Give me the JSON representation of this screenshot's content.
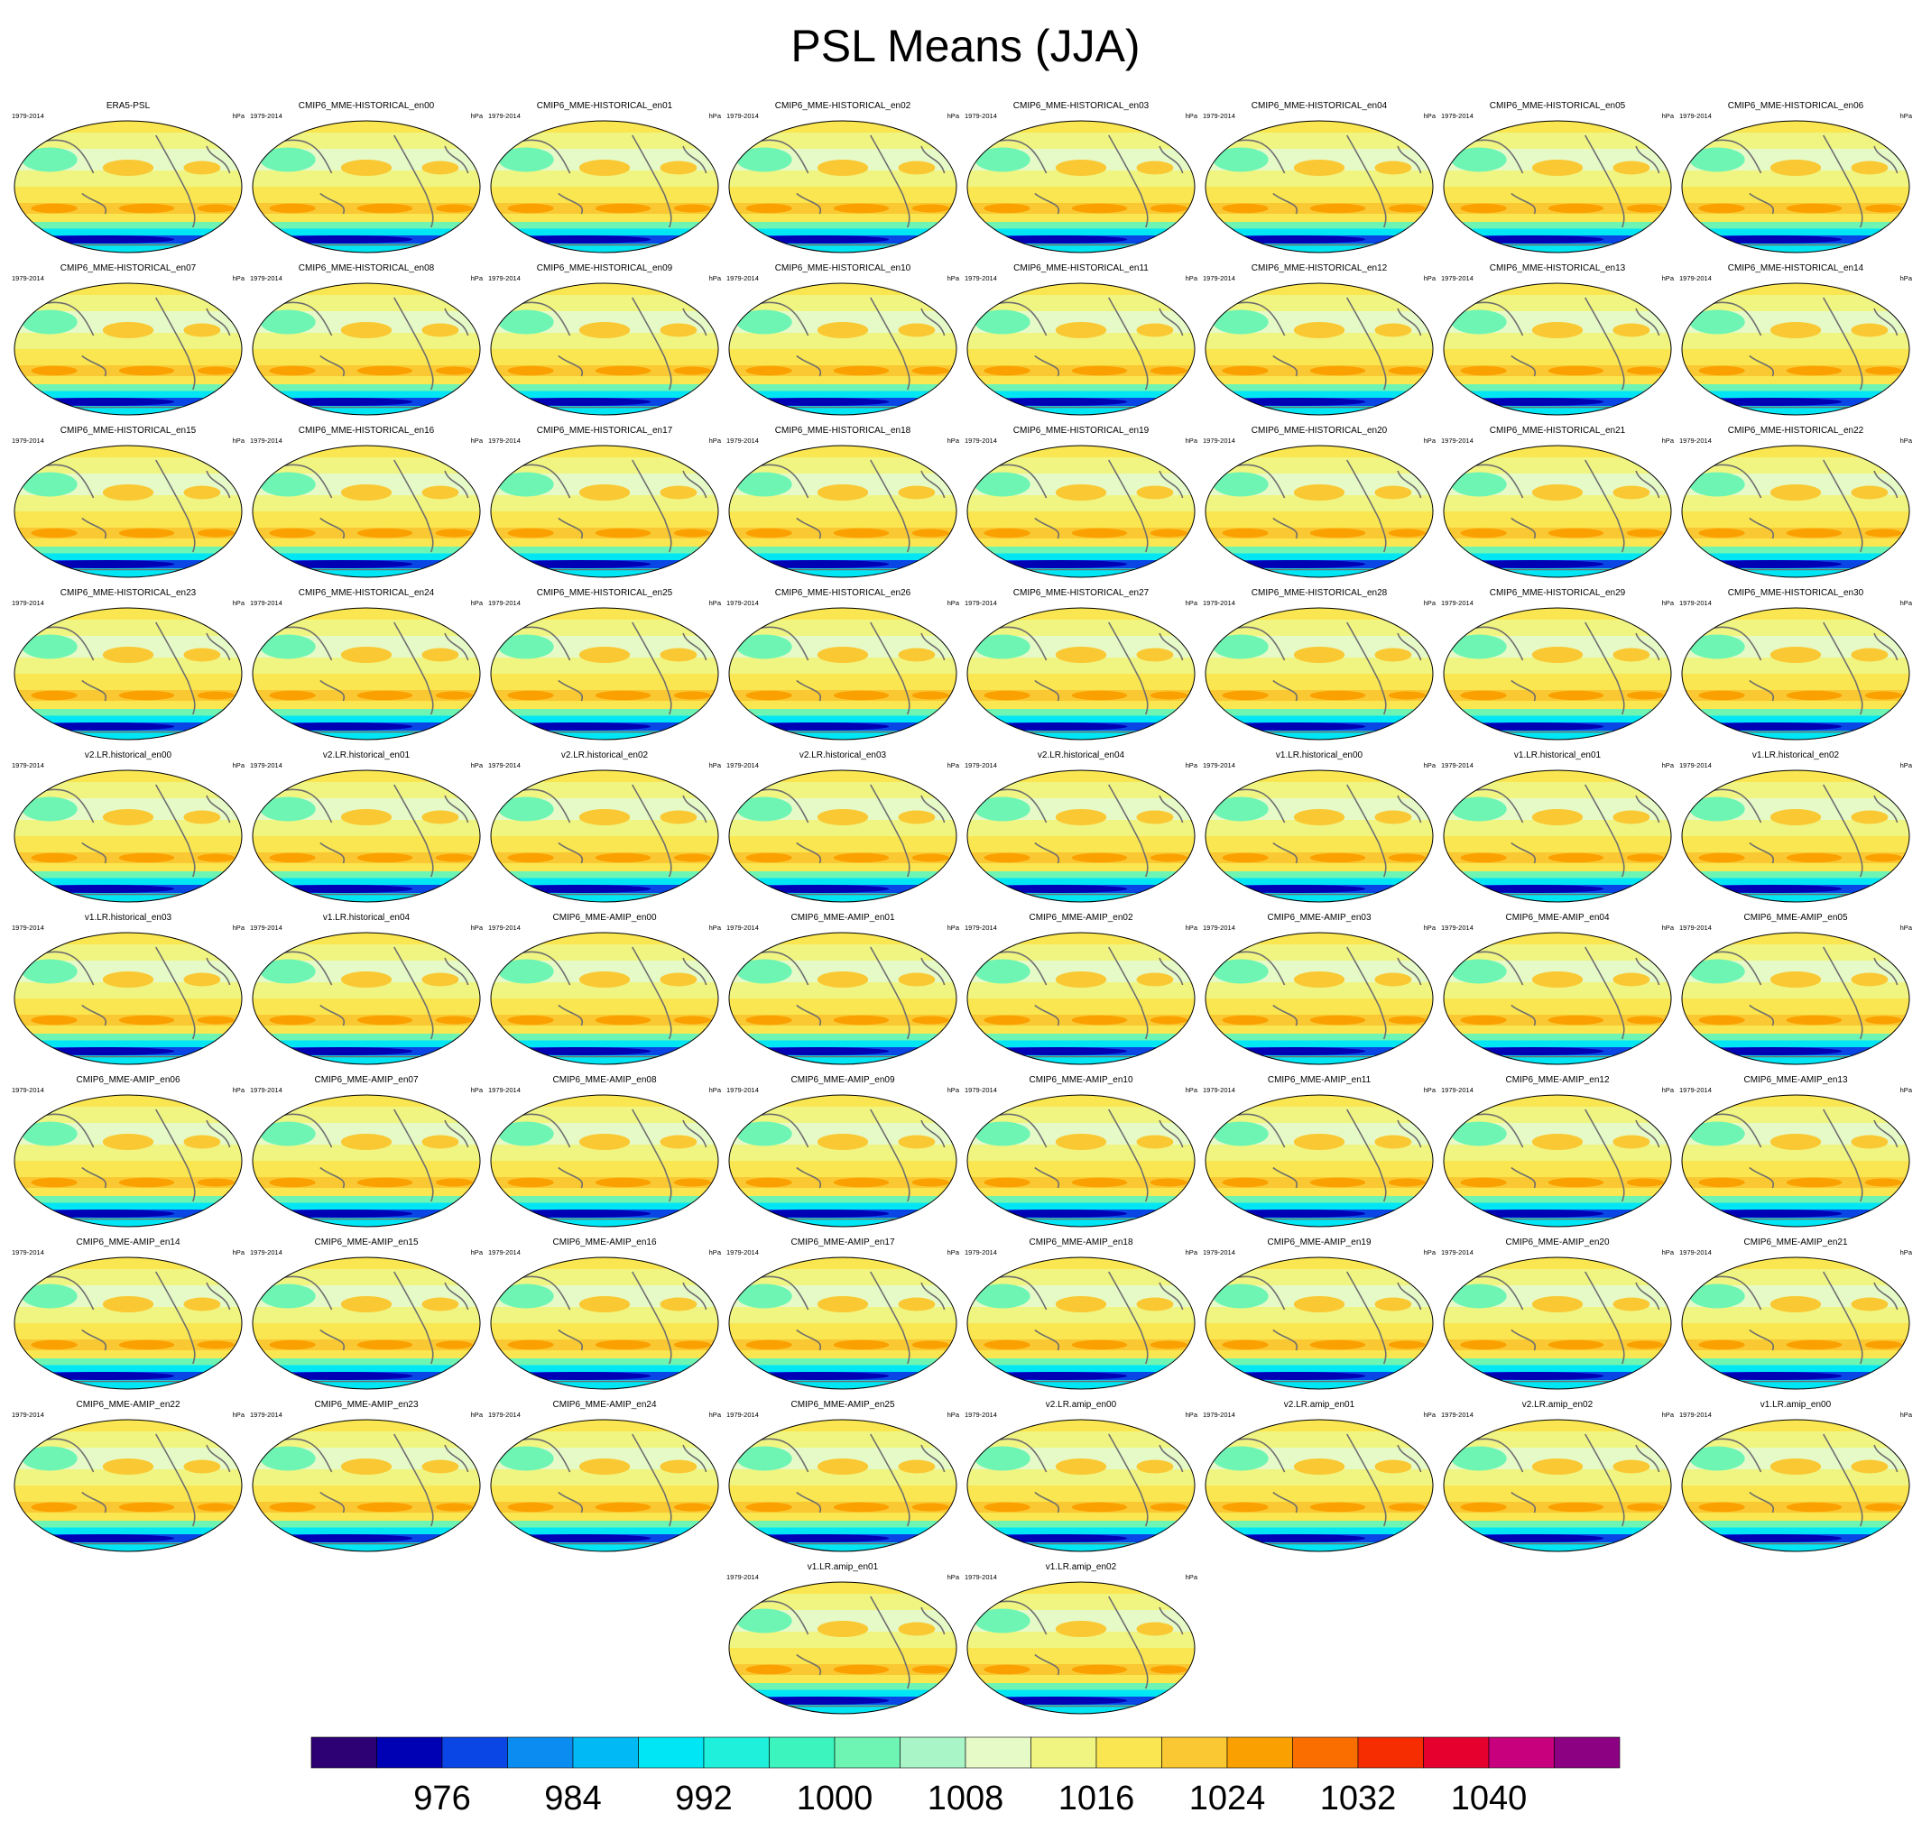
{
  "title": "PSL Means (JJA)",
  "period_label": "1979-2014",
  "units_label": "hPa",
  "colorbar": {
    "colors": [
      "#2d0073",
      "#0000b4",
      "#0a46e6",
      "#0a8cf0",
      "#00b9f5",
      "#00e6f5",
      "#1ef0dc",
      "#3cf5be",
      "#6ef5b4",
      "#aaf5c8",
      "#e6fac8",
      "#f0f582",
      "#fae650",
      "#fac832",
      "#faa000",
      "#fa6e00",
      "#f52d00",
      "#e6002d",
      "#c8007d",
      "#8c0082"
    ],
    "tick_labels": [
      "976",
      "984",
      "992",
      "1000",
      "1008",
      "1016",
      "1024",
      "1032",
      "1040"
    ]
  },
  "chart_data": {
    "type": "heatmap",
    "title": "PSL Means (JJA)",
    "variable": "PSL",
    "season": "JJA",
    "period": "1979-2014",
    "units": "hPa",
    "levels": [
      972,
      976,
      980,
      984,
      988,
      992,
      996,
      1000,
      1004,
      1008,
      1012,
      1016,
      1020,
      1024,
      1028,
      1032,
      1036,
      1040,
      1044
    ],
    "panels": [
      "ERA5-PSL",
      "CMIP6_MME-HISTORICAL_en00",
      "CMIP6_MME-HISTORICAL_en01",
      "CMIP6_MME-HISTORICAL_en02",
      "CMIP6_MME-HISTORICAL_en03",
      "CMIP6_MME-HISTORICAL_en04",
      "CMIP6_MME-HISTORICAL_en05",
      "CMIP6_MME-HISTORICAL_en06",
      "CMIP6_MME-HISTORICAL_en07",
      "CMIP6_MME-HISTORICAL_en08",
      "CMIP6_MME-HISTORICAL_en09",
      "CMIP6_MME-HISTORICAL_en10",
      "CMIP6_MME-HISTORICAL_en11",
      "CMIP6_MME-HISTORICAL_en12",
      "CMIP6_MME-HISTORICAL_en13",
      "CMIP6_MME-HISTORICAL_en14",
      "CMIP6_MME-HISTORICAL_en15",
      "CMIP6_MME-HISTORICAL_en16",
      "CMIP6_MME-HISTORICAL_en17",
      "CMIP6_MME-HISTORICAL_en18",
      "CMIP6_MME-HISTORICAL_en19",
      "CMIP6_MME-HISTORICAL_en20",
      "CMIP6_MME-HISTORICAL_en21",
      "CMIP6_MME-HISTORICAL_en22",
      "CMIP6_MME-HISTORICAL_en23",
      "CMIP6_MME-HISTORICAL_en24",
      "CMIP6_MME-HISTORICAL_en25",
      "CMIP6_MME-HISTORICAL_en26",
      "CMIP6_MME-HISTORICAL_en27",
      "CMIP6_MME-HISTORICAL_en28",
      "CMIP6_MME-HISTORICAL_en29",
      "CMIP6_MME-HISTORICAL_en30",
      "v2.LR.historical_en00",
      "v2.LR.historical_en01",
      "v2.LR.historical_en02",
      "v2.LR.historical_en03",
      "v2.LR.historical_en04",
      "v1.LR.historical_en00",
      "v1.LR.historical_en01",
      "v1.LR.historical_en02",
      "v1.LR.historical_en03",
      "v1.LR.historical_en04",
      "CMIP6_MME-AMIP_en00",
      "CMIP6_MME-AMIP_en01",
      "CMIP6_MME-AMIP_en02",
      "CMIP6_MME-AMIP_en03",
      "CMIP6_MME-AMIP_en04",
      "CMIP6_MME-AMIP_en05",
      "CMIP6_MME-AMIP_en06",
      "CMIP6_MME-AMIP_en07",
      "CMIP6_MME-AMIP_en08",
      "CMIP6_MME-AMIP_en09",
      "CMIP6_MME-AMIP_en10",
      "CMIP6_MME-AMIP_en11",
      "CMIP6_MME-AMIP_en12",
      "CMIP6_MME-AMIP_en13",
      "CMIP6_MME-AMIP_en14",
      "CMIP6_MME-AMIP_en15",
      "CMIP6_MME-AMIP_en16",
      "CMIP6_MME-AMIP_en17",
      "CMIP6_MME-AMIP_en18",
      "CMIP6_MME-AMIP_en19",
      "CMIP6_MME-AMIP_en20",
      "CMIP6_MME-AMIP_en21",
      "CMIP6_MME-AMIP_en22",
      "CMIP6_MME-AMIP_en23",
      "CMIP6_MME-AMIP_en24",
      "CMIP6_MME-AMIP_en25",
      "v2.LR.amip_en00",
      "v2.LR.amip_en01",
      "v2.LR.amip_en02",
      "v1.LR.amip_en00",
      "v1.LR.amip_en01",
      "v1.LR.amip_en02"
    ]
  }
}
